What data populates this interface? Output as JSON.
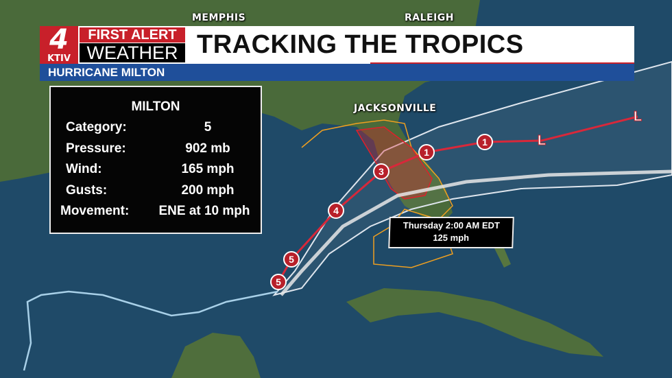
{
  "header": {
    "logo": {
      "channel": "4",
      "station": "KTIV",
      "line1": "FIRST ALERT",
      "line2": "WEATHER"
    },
    "title": "TRACKING THE TROPICS",
    "subtitle": "HURRICANE MILTON"
  },
  "cities": [
    "MEMPHIS",
    "RALEIGH",
    "JACKSONVILLE"
  ],
  "storm_info": {
    "name": "MILTON",
    "rows": [
      {
        "label": "Category:",
        "value": "5"
      },
      {
        "label": "Pressure:",
        "value": "902 mb"
      },
      {
        "label": "Wind:",
        "value": "165 mph"
      },
      {
        "label": "Gusts:",
        "value": "200 mph"
      },
      {
        "label": "Movement:",
        "value": "ENE at 10 mph"
      }
    ]
  },
  "forecast_callout": {
    "time": "Thursday 2:00 AM EDT",
    "wind": "125 mph"
  },
  "track_points": [
    "5",
    "5",
    "4",
    "3",
    "1",
    "1",
    "L",
    "L"
  ],
  "colors": {
    "brand_red": "#c8202a",
    "brand_blue": "#1f4f9a",
    "track": "#d8283a",
    "past_track": "#a8d0e8",
    "warning_red": "#e0202a",
    "watch_orange": "#f0a020"
  }
}
